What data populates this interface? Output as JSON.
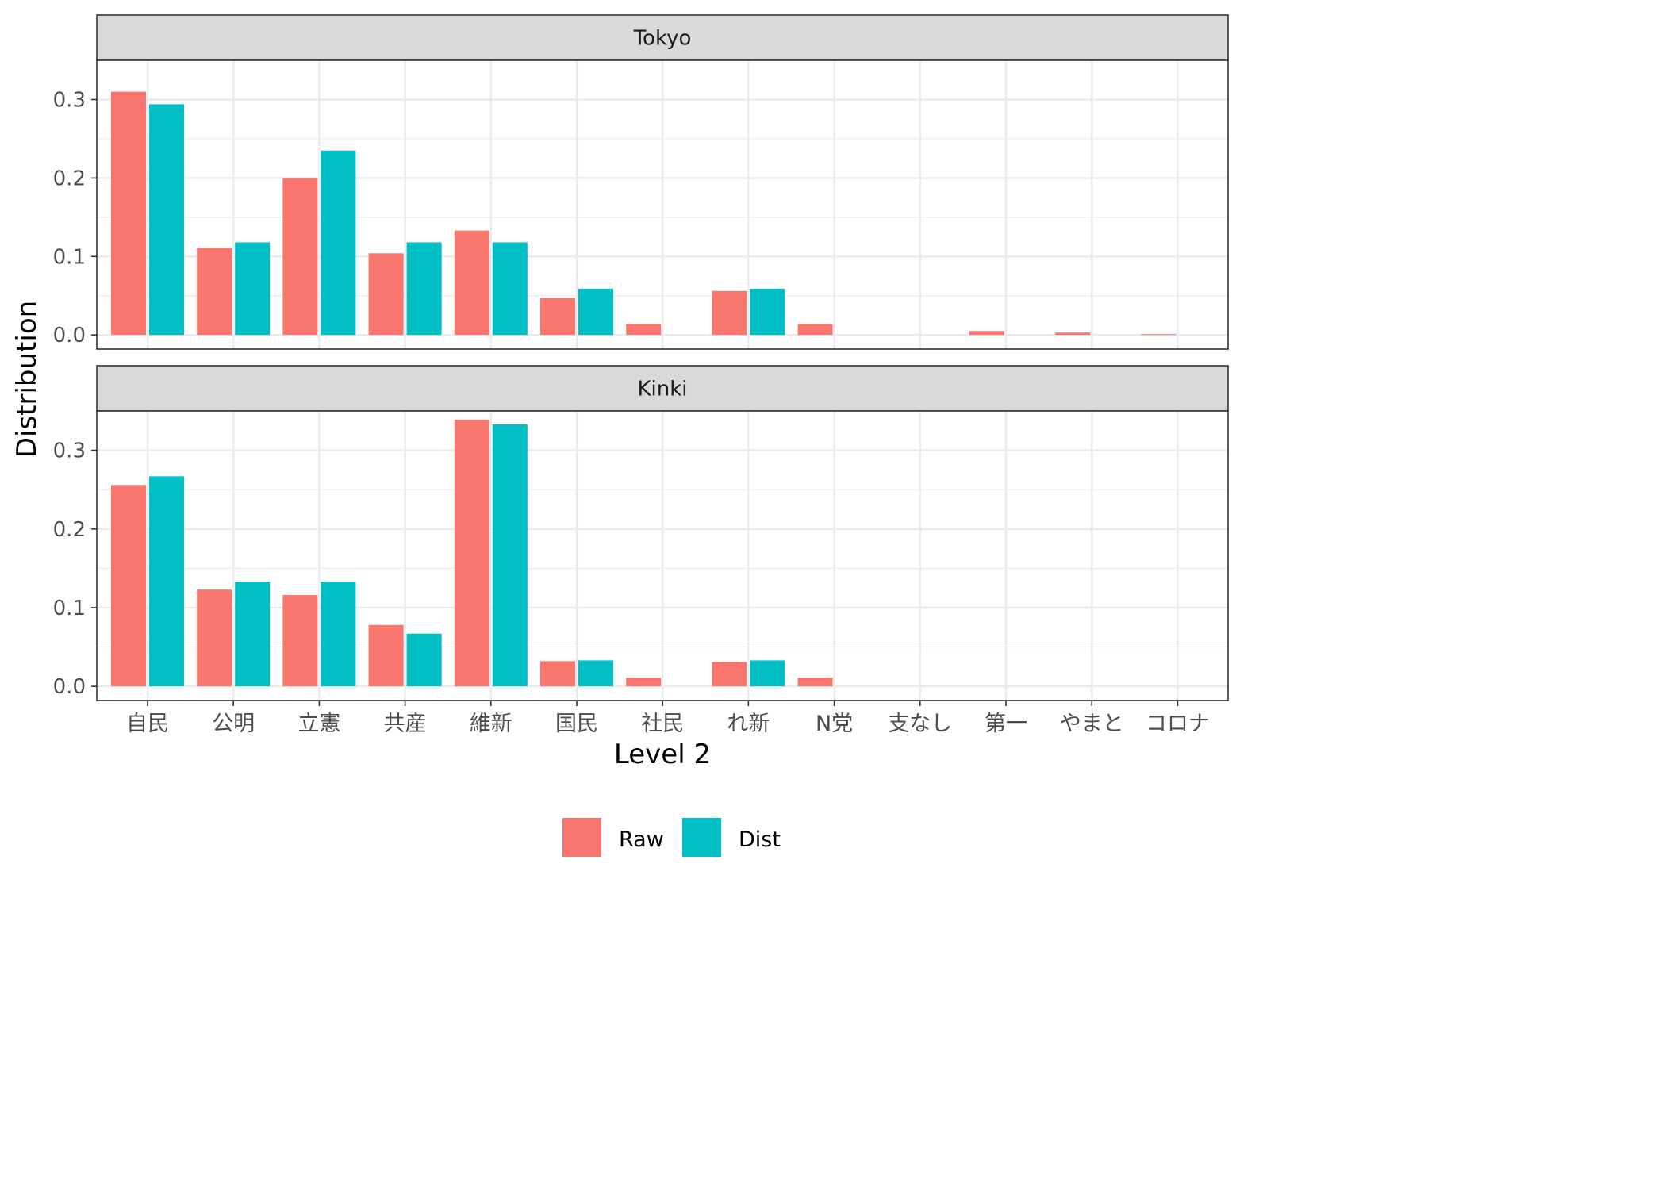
{
  "chart_data": {
    "type": "bar",
    "xlabel": "Level 2",
    "ylabel": "Distribution",
    "ylim": [
      -0.018,
      0.35
    ],
    "yticks": [
      0.0,
      0.1,
      0.2,
      0.3
    ],
    "ytick_labels": [
      "0.0",
      "0.1",
      "0.2",
      "0.3"
    ],
    "categories": [
      "自民",
      "公明",
      "立憲",
      "共産",
      "維新",
      "国民",
      "社民",
      "れ新",
      "N党",
      "支なし",
      "第一",
      "やまと",
      "コロナ"
    ],
    "legend": {
      "position": "bottom",
      "items": [
        {
          "name": "Raw",
          "color": "#F8766D"
        },
        {
          "name": "Dist",
          "color": "#00BFC4"
        }
      ]
    },
    "panels": [
      {
        "strip": "Tokyo",
        "series": [
          {
            "name": "Raw",
            "values": [
              0.31,
              0.111,
              0.2,
              0.104,
              0.133,
              0.047,
              0.014,
              0.056,
              0.014,
              0.0,
              0.005,
              0.003,
              0.001
            ]
          },
          {
            "name": "Dist",
            "values": [
              0.294,
              0.118,
              0.235,
              0.118,
              0.118,
              0.059,
              0.0,
              0.059,
              0.0,
              0.0,
              0.0,
              0.0,
              0.0
            ]
          }
        ]
      },
      {
        "strip": "Kinki",
        "series": [
          {
            "name": "Raw",
            "values": [
              0.256,
              0.123,
              0.116,
              0.078,
              0.339,
              0.032,
              0.011,
              0.031,
              0.011,
              0.0,
              0.0,
              0.0,
              0.0
            ]
          },
          {
            "name": "Dist",
            "values": [
              0.267,
              0.133,
              0.133,
              0.067,
              0.333,
              0.033,
              0.0,
              0.033,
              0.0,
              0.0,
              0.0,
              0.0,
              0.0
            ]
          }
        ]
      }
    ],
    "grid": true
  }
}
